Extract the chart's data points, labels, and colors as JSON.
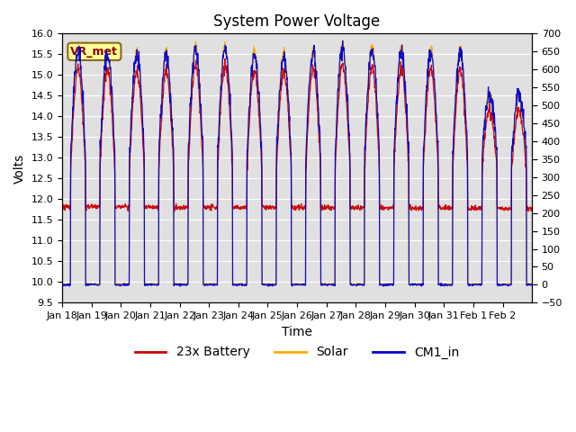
{
  "title": "System Power Voltage",
  "xlabel": "Time",
  "ylabel": "Volts",
  "ylim_left": [
    9.5,
    16.0
  ],
  "ylim_right": [
    -50,
    700
  ],
  "yticks_left": [
    9.5,
    10.0,
    10.5,
    11.0,
    11.5,
    12.0,
    12.5,
    13.0,
    13.5,
    14.0,
    14.5,
    15.0,
    15.5,
    16.0
  ],
  "yticks_right": [
    -50,
    0,
    50,
    100,
    150,
    200,
    250,
    300,
    350,
    400,
    450,
    500,
    550,
    600,
    650,
    700
  ],
  "xtick_labels": [
    "Jan 18",
    "Jan 19",
    "Jan 20",
    "Jan 21",
    "Jan 22",
    "Jan 23",
    "Jan 24",
    "Jan 25",
    "Jan 26",
    "Jan 27",
    "Jan 28",
    "Jan 29",
    "Jan 30",
    "Jan 31",
    "Feb 1",
    "Feb 2"
  ],
  "legend_labels": [
    "23x Battery",
    "Solar",
    "CM1_in"
  ],
  "battery_color": "#cc0000",
  "solar_color": "#ffaa00",
  "cm1_color": "#0000cc",
  "bg_color": "#e0e0e0",
  "annotation_text": "VR_met",
  "annotation_color": "#8b0000",
  "annotation_bg": "#ffff99",
  "annotation_edge": "#8b6914",
  "grid_color": "#ffffff",
  "title_fontsize": 12,
  "axis_fontsize": 10,
  "legend_fontsize": 10,
  "tick_fontsize": 8
}
